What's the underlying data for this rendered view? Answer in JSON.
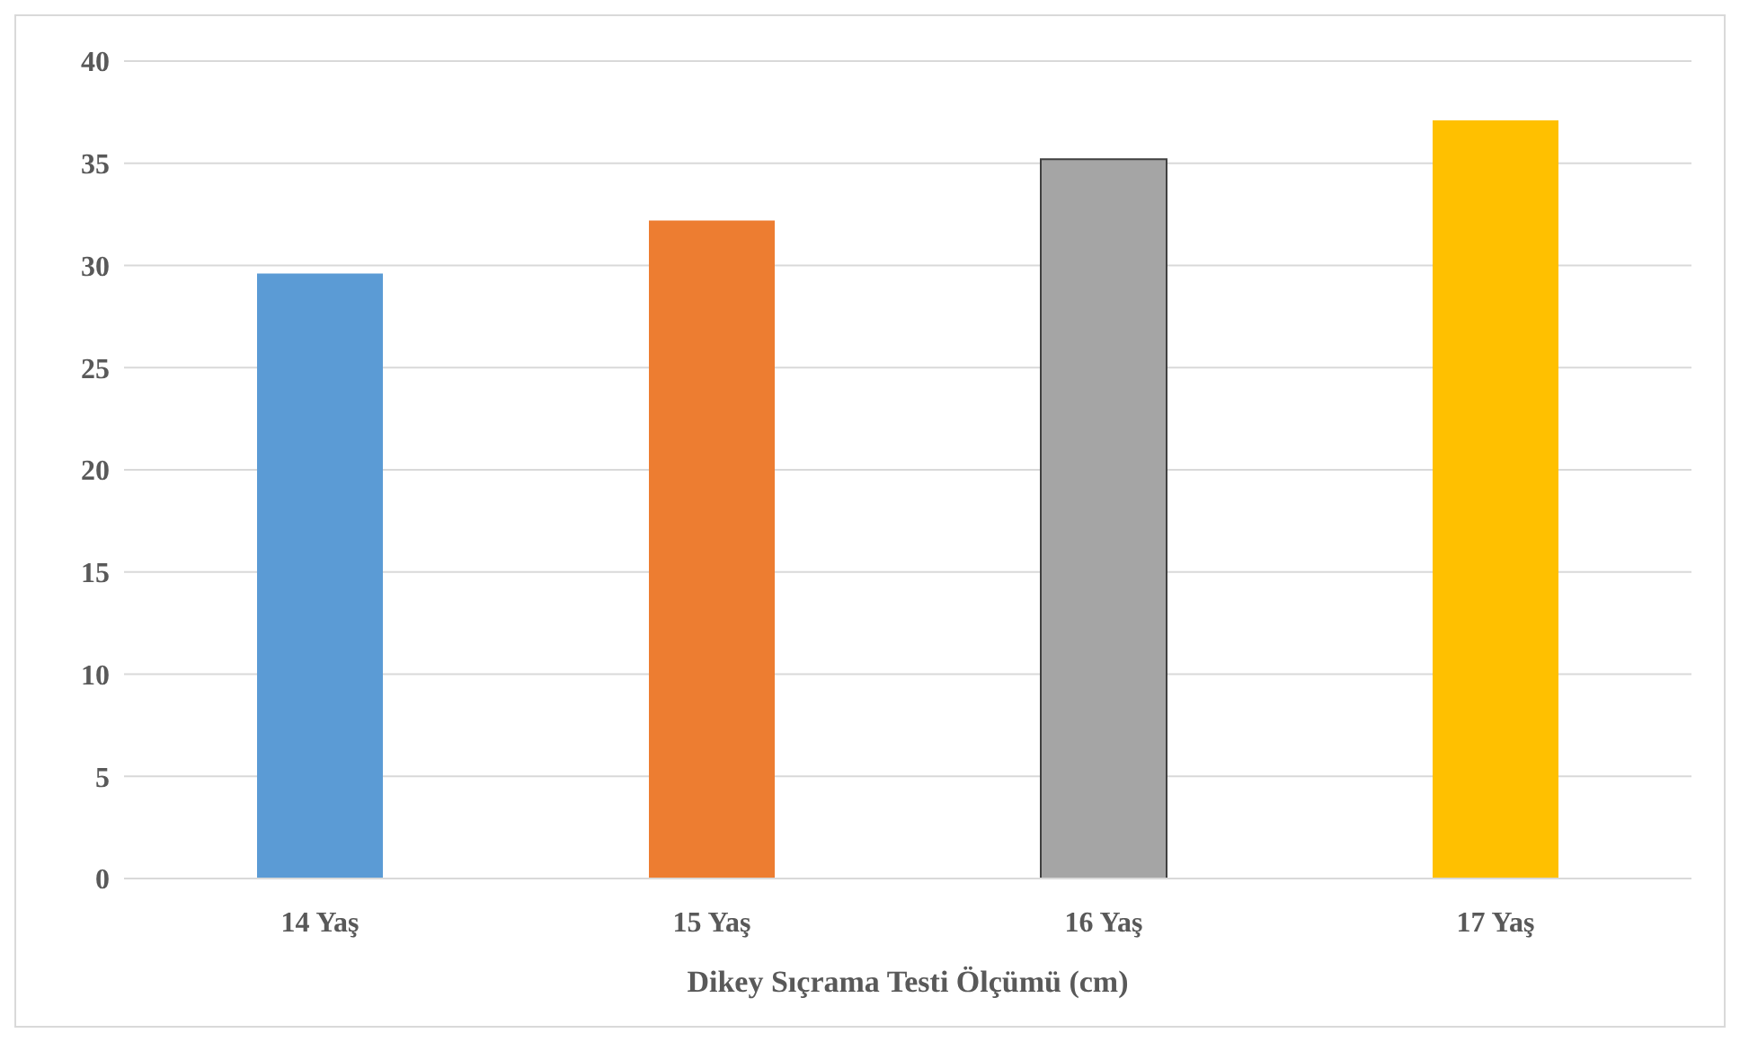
{
  "chart_data": {
    "type": "bar",
    "xlabel": "Dikey Sıçrama Testi Ölçümü (cm)",
    "categories": [
      "14 Yaş",
      "15 Yaş",
      "16 Yaş",
      "17 Yaş"
    ],
    "values": [
      29.6,
      32.2,
      35.2,
      37.1
    ],
    "colors": [
      "#5b9bd5",
      "#ed7d31",
      "#a5a5a5",
      "#ffc000"
    ],
    "ylim": [
      0,
      40
    ],
    "yticks": [
      0,
      5,
      10,
      15,
      20,
      25,
      30,
      35,
      40
    ],
    "grid": "y"
  }
}
